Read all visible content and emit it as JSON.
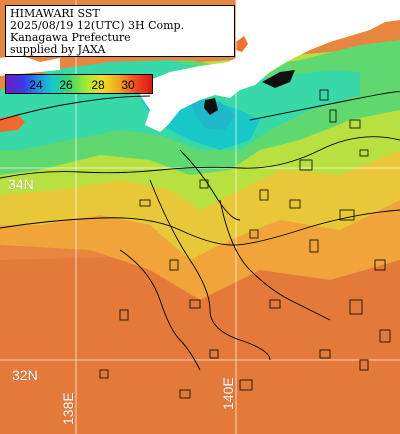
{
  "title": {
    "line1": "HIMAWARI SST",
    "line2": "2025/08/19 12(UTC) 3H Comp.",
    "line3": "Kanagawa Prefecture",
    "line4": "supplied by JAXA"
  },
  "colorbar": {
    "labels": [
      "24",
      "26",
      "28",
      "30"
    ],
    "low_color": "#6a1fc0",
    "high_color": "#d81818"
  },
  "grid": {
    "lat_labels": [
      "34N",
      "32N"
    ],
    "lon_labels": [
      "138E",
      "140E"
    ]
  },
  "colors": {
    "warm_sea": "#e8803e",
    "cool_sea": "#40d890",
    "coastal": "#18c8c8",
    "land": "#ffffff",
    "gridline": "#ffffff",
    "contour": "#000000"
  }
}
